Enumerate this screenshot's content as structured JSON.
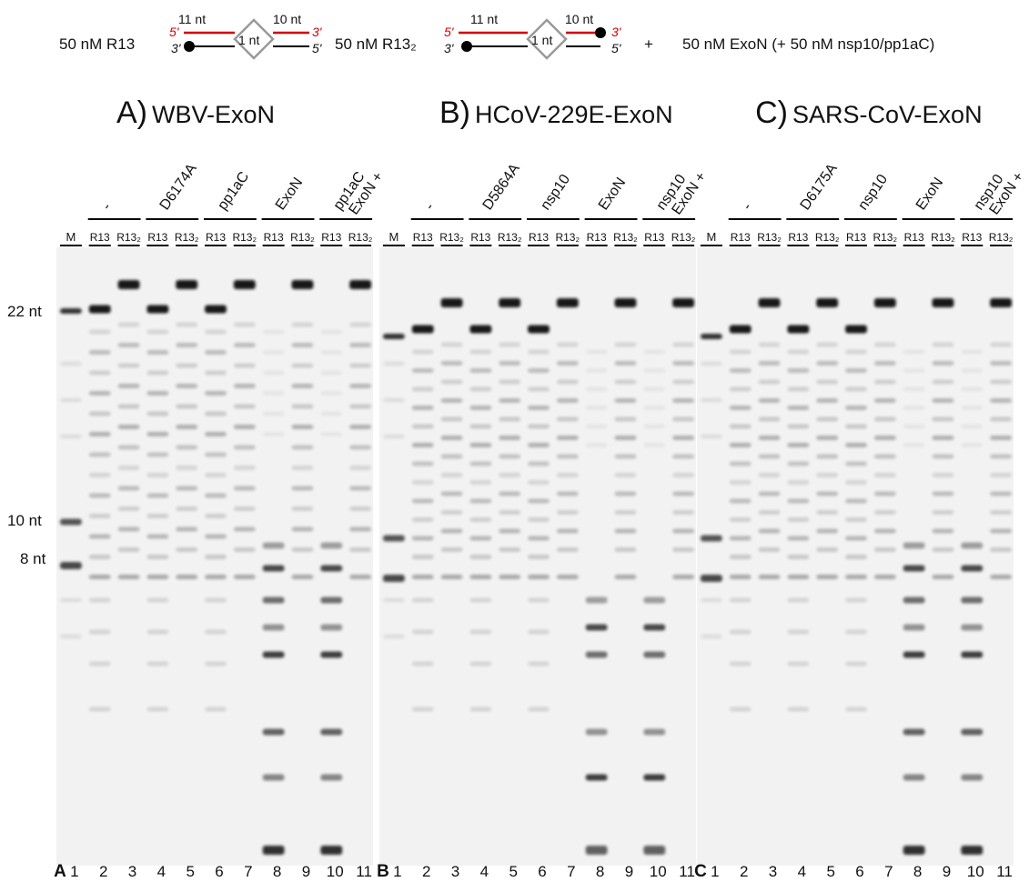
{
  "header": {
    "substrate_1": "50 nM R13",
    "substrate_2": "50 nM R13₂",
    "plus": "+",
    "enzyme": "50 nM ExoN (+ 50 nM nsp10/pp1aC)",
    "schematic": {
      "left_length": "11 nt",
      "right_length": "10 nt",
      "bulge": "1 nt",
      "five_prime": "5'",
      "three_prime": "3'"
    }
  },
  "markers": [
    "22 nt",
    "10 nt",
    "8 nt"
  ],
  "panels": [
    {
      "letter": "A)",
      "title": "WBV-ExoN",
      "lane_letter": "A",
      "groups": [
        [
          "-"
        ],
        [
          "D6174A"
        ],
        [
          "pp1aC"
        ],
        [
          "ExoN"
        ],
        [
          "ExoN +",
          "pp1aC"
        ]
      ],
      "lanes": [
        "M",
        "R13",
        "R13₂",
        "R13",
        "R13₂",
        "R13",
        "R13₂",
        "R13",
        "R13₂",
        "R13",
        "R13₂"
      ],
      "lane_numbers": [
        1,
        2,
        3,
        4,
        5,
        6,
        7,
        8,
        9,
        10,
        11
      ]
    },
    {
      "letter": "B)",
      "title": "HCoV-229E-ExoN",
      "lane_letter": "B",
      "groups": [
        [
          "-"
        ],
        [
          "D5864A"
        ],
        [
          "nsp10"
        ],
        [
          "ExoN"
        ],
        [
          "ExoN +",
          "nsp10"
        ]
      ],
      "lanes": [
        "M",
        "R13",
        "R13₂",
        "R13",
        "R13₂",
        "R13",
        "R13₂",
        "R13",
        "R13₂",
        "R13",
        "R13₂"
      ],
      "lane_numbers": [
        1,
        2,
        3,
        4,
        5,
        6,
        7,
        8,
        9,
        10,
        11
      ]
    },
    {
      "letter": "C)",
      "title": "SARS-CoV-ExoN",
      "lane_letter": "C",
      "groups": [
        [
          "-"
        ],
        [
          "D6175A"
        ],
        [
          "nsp10"
        ],
        [
          "ExoN"
        ],
        [
          "ExoN +",
          "nsp10"
        ]
      ],
      "lanes": [
        "M",
        "R13",
        "R13₂",
        "R13",
        "R13₂",
        "R13",
        "R13₂",
        "R13",
        "R13₂",
        "R13",
        "R13₂"
      ],
      "lane_numbers": [
        1,
        2,
        3,
        4,
        5,
        6,
        7,
        8,
        9,
        10,
        11
      ]
    }
  ]
}
